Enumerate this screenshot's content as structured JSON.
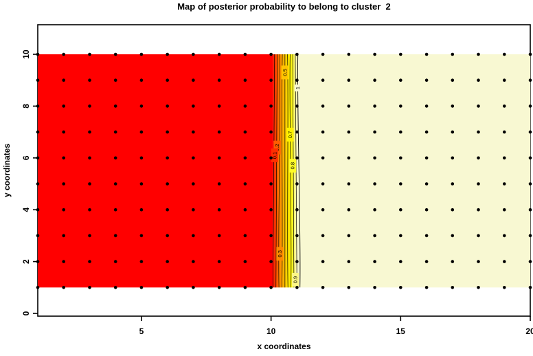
{
  "title": "Map of posterior probability to belong to cluster  2",
  "chart_data": {
    "type": "heatmap",
    "title": "Map of posterior probability to belong to cluster  2",
    "xlabel": "x coordinates",
    "ylabel": "y coordinates",
    "x_ticks": [
      5,
      10,
      15,
      20
    ],
    "y_ticks": [
      0,
      2,
      4,
      6,
      8,
      10
    ],
    "x_domain": [
      1,
      20
    ],
    "y_domain": [
      1,
      10
    ],
    "description": "Posterior probability of belonging to cluster 2 over a spatial grid: probability ~0 for x<10 (red), rising from 0 to 1 across 10<x<11 (heat-color gradient crossed by labeled contour lines), and ~1 for x>11 (pale yellow). Black dots mark every integer grid point.",
    "regions": [
      {
        "name": "low-probability",
        "x_from": 1,
        "x_to": 10.07,
        "value": 0,
        "color": "#FF0000"
      },
      {
        "name": "transition",
        "x_from": 10.07,
        "x_to": 11.12,
        "value": "0 to 1",
        "color": "heat-gradient"
      },
      {
        "name": "high-probability",
        "x_from": 11.12,
        "x_to": 20,
        "value": 1,
        "color": "#F8F8D2"
      }
    ],
    "heat_stops": [
      {
        "offset": 0.0,
        "color": "#FF0D00"
      },
      {
        "offset": 0.06,
        "color": "#FF2E00"
      },
      {
        "offset": 0.16,
        "color": "#FF5C00"
      },
      {
        "offset": 0.25,
        "color": "#FF8A00"
      },
      {
        "offset": 0.44,
        "color": "#FFC400"
      },
      {
        "offset": 0.63,
        "color": "#FFF200"
      },
      {
        "offset": 0.73,
        "color": "#FFFC28"
      },
      {
        "offset": 0.82,
        "color": "#FBF59A"
      },
      {
        "offset": 0.92,
        "color": "#F8F8D2"
      },
      {
        "offset": 1.0,
        "color": "#F8F8D2"
      }
    ],
    "contour_levels": [
      0.1,
      0.2,
      0.3,
      0.4,
      0.5,
      0.6,
      0.7,
      0.8,
      0.9,
      1
    ],
    "contour_labels": [
      {
        "value": "0.5",
        "y": 9.3,
        "bg": "#FFC400"
      },
      {
        "value": "1",
        "y": 8.7,
        "bg": "#F8F8D2"
      },
      {
        "value": "0.7",
        "y": 6.9,
        "bg": "#FFF200"
      },
      {
        "value": "0.2",
        "y": 6.4,
        "bg": "#FF5C00"
      },
      {
        "value": "0.1",
        "y": 6.1,
        "bg": "#FF2E00"
      },
      {
        "value": "0.8",
        "y": 5.7,
        "bg": "#FFFC28"
      },
      {
        "value": "0.3",
        "y": 2.3,
        "bg": "#FF8A00"
      },
      {
        "value": "0.9",
        "y": 1.3,
        "bg": "#FCF787"
      }
    ],
    "grid_points": {
      "x_values": [
        1,
        2,
        3,
        4,
        5,
        6,
        7,
        8,
        9,
        10,
        11,
        12,
        13,
        14,
        15,
        16,
        17,
        18,
        19,
        20
      ],
      "y_values": [
        1,
        2,
        3,
        4,
        5,
        6,
        7,
        8,
        9,
        10
      ],
      "marker_color": "#000000"
    }
  }
}
